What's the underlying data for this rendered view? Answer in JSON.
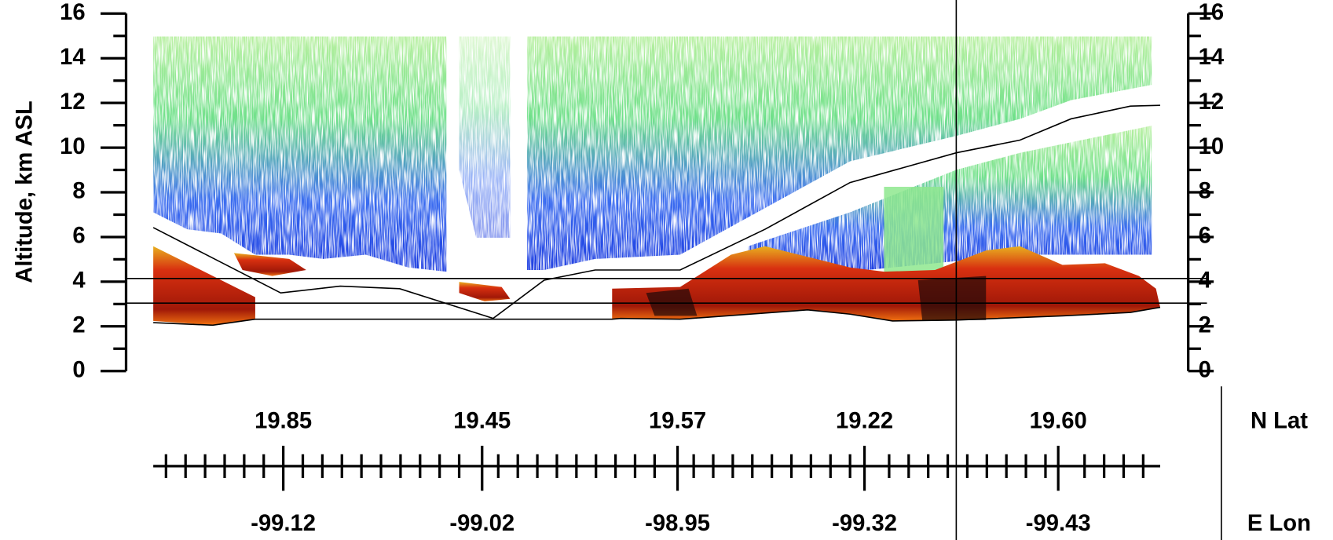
{
  "chart_data": {
    "type": "lidar-curtain",
    "ylabel": "Altitude, km ASL",
    "ylim": [
      0,
      16
    ],
    "yticks": [
      0,
      2,
      4,
      6,
      8,
      10,
      12,
      14,
      16
    ],
    "y2lim": [
      0,
      16
    ],
    "y2ticks": [
      0,
      2,
      4,
      6,
      8,
      10,
      12,
      14,
      16
    ],
    "lat_label": "N Lat",
    "lat_ticks": [
      "19.85",
      "19.45",
      "19.57",
      "19.22",
      "19.60"
    ],
    "lon_label": "E Lon",
    "lon_ticks": [
      "-99.12",
      "-99.02",
      "-98.95",
      "-99.32",
      "-99.43"
    ]
  }
}
